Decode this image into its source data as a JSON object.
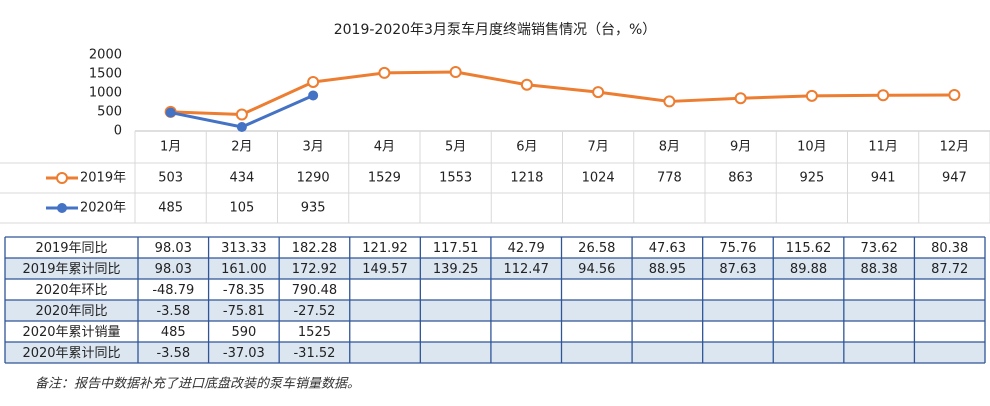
{
  "chart_data": {
    "type": "line",
    "title": "2019-2020年3月泵车月度终端销售情况（台，%）",
    "categories": [
      "1月",
      "2月",
      "3月",
      "4月",
      "5月",
      "6月",
      "7月",
      "8月",
      "9月",
      "10月",
      "11月",
      "12月"
    ],
    "series": [
      {
        "name": "2019年",
        "color": "#ed7d31",
        "values": [
          503,
          434,
          1290,
          1529,
          1553,
          1218,
          1024,
          778,
          863,
          925,
          941,
          947
        ]
      },
      {
        "name": "2020年",
        "color": "#4472c4",
        "values": [
          485,
          105,
          935,
          null,
          null,
          null,
          null,
          null,
          null,
          null,
          null,
          null
        ]
      }
    ],
    "ylim": [
      0,
      2000
    ],
    "yticks": [
      0,
      500,
      1000,
      1500,
      2000
    ]
  },
  "table": {
    "rows": [
      {
        "label": "2019年同比",
        "cells": [
          "98.03",
          "313.33",
          "182.28",
          "121.92",
          "117.51",
          "42.79",
          "26.58",
          "47.63",
          "75.76",
          "115.62",
          "73.62",
          "80.38"
        ]
      },
      {
        "label": "2019年累计同比",
        "cells": [
          "98.03",
          "161.00",
          "172.92",
          "149.57",
          "139.25",
          "112.47",
          "94.56",
          "88.95",
          "87.63",
          "89.88",
          "88.38",
          "87.72"
        ]
      },
      {
        "label": "2020年环比",
        "cells": [
          "-48.79",
          "-78.35",
          "790.48"
        ]
      },
      {
        "label": "2020年同比",
        "cells": [
          "-3.58",
          "-75.81",
          "-27.52"
        ]
      },
      {
        "label": "2020年累计销量",
        "cells": [
          "485",
          "590",
          "1525"
        ]
      },
      {
        "label": "2020年累计同比",
        "cells": [
          "-3.58",
          "-37.03",
          "-31.52"
        ]
      }
    ]
  },
  "note": "备注：报告中数据补充了进口底盘改装的泵车销量数据。"
}
